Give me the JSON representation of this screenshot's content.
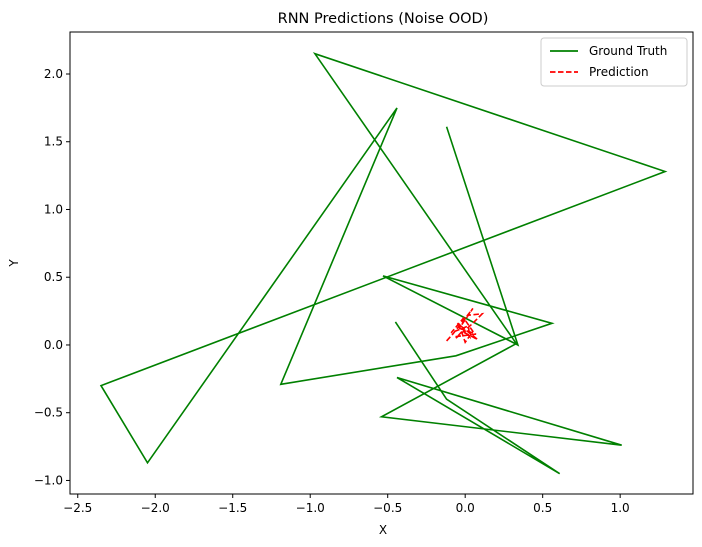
{
  "chart_data": {
    "type": "line",
    "title": "RNN Predictions (Noise OOD)",
    "xlabel": "X",
    "ylabel": "Y",
    "xlim": [
      -2.55,
      1.47
    ],
    "ylim": [
      -1.1,
      2.31
    ],
    "xticks": [
      -2.5,
      -2.0,
      -1.5,
      -1.0,
      -0.5,
      0.0,
      0.5,
      1.0
    ],
    "xtick_labels": [
      "−2.5",
      "−2.0",
      "−1.5",
      "−1.0",
      "−0.5",
      "0.0",
      "0.5",
      "1.0"
    ],
    "yticks": [
      -1.0,
      -0.5,
      0.0,
      0.5,
      1.0,
      1.5,
      2.0
    ],
    "ytick_labels": [
      "−1.0",
      "−0.5",
      "0.0",
      "0.5",
      "1.0",
      "1.5",
      "2.0"
    ],
    "grid": false,
    "legend_position": "top-right",
    "series": [
      {
        "name": "Ground Truth",
        "color": "#008000",
        "style": "solid",
        "x": [
          -0.12,
          0.34,
          -0.53,
          0.56,
          -0.06,
          -1.19,
          -0.44,
          -2.05,
          -2.35,
          1.29,
          -0.97,
          0.33,
          -0.54,
          1.01,
          -0.44,
          0.61,
          -0.12,
          -0.45
        ],
        "y": [
          1.61,
          0.0,
          0.51,
          0.16,
          -0.08,
          -0.29,
          1.75,
          -0.87,
          -0.3,
          1.28,
          2.15,
          0.01,
          -0.53,
          -0.74,
          -0.24,
          -0.95,
          -0.4,
          0.17
        ]
      },
      {
        "name": "Prediction",
        "color": "#ff0000",
        "style": "dashed",
        "x": [
          -0.12,
          -0.08,
          0.05,
          -0.04,
          0.02,
          0.11,
          0.04,
          -0.06,
          -0.02,
          0.08,
          -0.05,
          0.03,
          0.02,
          -0.09,
          -0.01,
          0.05,
          0.0,
          -0.03,
          0.07,
          -0.07
        ],
        "y": [
          0.03,
          0.08,
          0.27,
          0.12,
          0.22,
          0.23,
          0.15,
          0.05,
          0.1,
          0.04,
          0.16,
          0.06,
          0.14,
          0.09,
          0.2,
          0.1,
          0.02,
          0.12,
          0.08,
          0.06
        ]
      }
    ]
  }
}
